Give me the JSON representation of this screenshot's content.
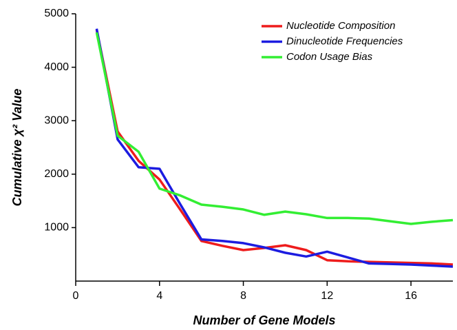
{
  "chart_data": {
    "type": "line",
    "x_label": "Number of Gene Models",
    "y_label": "Cumulative χ² Value",
    "x": [
      1,
      2,
      3,
      4,
      5,
      6,
      7,
      8,
      9,
      10,
      11,
      12,
      13,
      14,
      15,
      16,
      17,
      18
    ],
    "series": [
      {
        "name": "Nucleotide Composition",
        "color": "#ee1c1c",
        "values": [
          4700,
          2800,
          2250,
          1900,
          1330,
          750,
          660,
          580,
          620,
          670,
          580,
          390,
          370,
          360,
          350,
          340,
          330,
          310
        ]
      },
      {
        "name": "Dinucleotide Frequencies",
        "color": "#1c1ce0",
        "values": [
          4720,
          2650,
          2130,
          2100,
          1430,
          780,
          750,
          710,
          630,
          530,
          460,
          550,
          440,
          330,
          320,
          310,
          290,
          270
        ]
      },
      {
        "name": "Codon Usage Bias",
        "color": "#33ee33",
        "values": [
          4650,
          2720,
          2420,
          1730,
          1600,
          1430,
          1390,
          1340,
          1240,
          1300,
          1250,
          1180,
          1180,
          1170,
          1120,
          1070,
          1110,
          1140
        ]
      }
    ],
    "xlim": [
      0,
      18
    ],
    "xticks": [
      0,
      4,
      8,
      12,
      16
    ],
    "ylim": [
      0,
      5000
    ],
    "yticks": [
      1000,
      2000,
      3000,
      4000,
      5000
    ],
    "legend": "top-right"
  }
}
